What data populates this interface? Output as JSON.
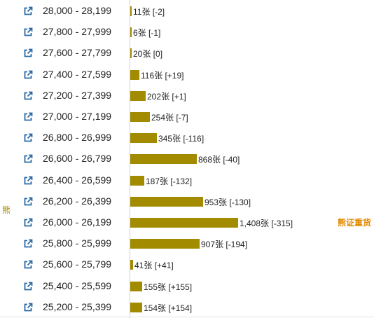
{
  "chart_data": {
    "type": "bar",
    "orientation": "horizontal",
    "side_label": "熊",
    "categories": [
      "28,000 - 28,199",
      "27,800 - 27,999",
      "27,600 - 27,799",
      "27,400 - 27,599",
      "27,200 - 27,399",
      "27,000 - 27,199",
      "26,800 - 26,999",
      "26,600 - 26,799",
      "26,400 - 26,599",
      "26,200 - 26,399",
      "26,000 - 26,199",
      "25,800 - 25,999",
      "25,600 - 25,799",
      "25,400 - 25,599",
      "25,200 - 25,399"
    ],
    "values": [
      11,
      6,
      20,
      116,
      202,
      254,
      345,
      868,
      187,
      953,
      1408,
      907,
      41,
      155,
      154
    ],
    "labels": [
      "11张 [-2]",
      "6张 [-1]",
      "20张 [0]",
      "116张 [+19]",
      "202张 [+1]",
      "254张 [-7]",
      "345张 [-116]",
      "868张 [-40]",
      "187张 [-132]",
      "953张 [-130]",
      "1,408张 [-315]",
      "907张 [-194]",
      "41张 [+41]",
      "155张 [+155]",
      "154张 [+154]"
    ],
    "tags": [
      "",
      "",
      "",
      "",
      "",
      "",
      "",
      "",
      "",
      "",
      "熊证重货",
      "",
      "",
      "",
      ""
    ],
    "xlim": [
      0,
      1408
    ],
    "colors": {
      "bar": "#a38b00",
      "tag": "#e08a00",
      "icon": "#2a6aa6"
    },
    "icon": "external-link-icon"
  }
}
